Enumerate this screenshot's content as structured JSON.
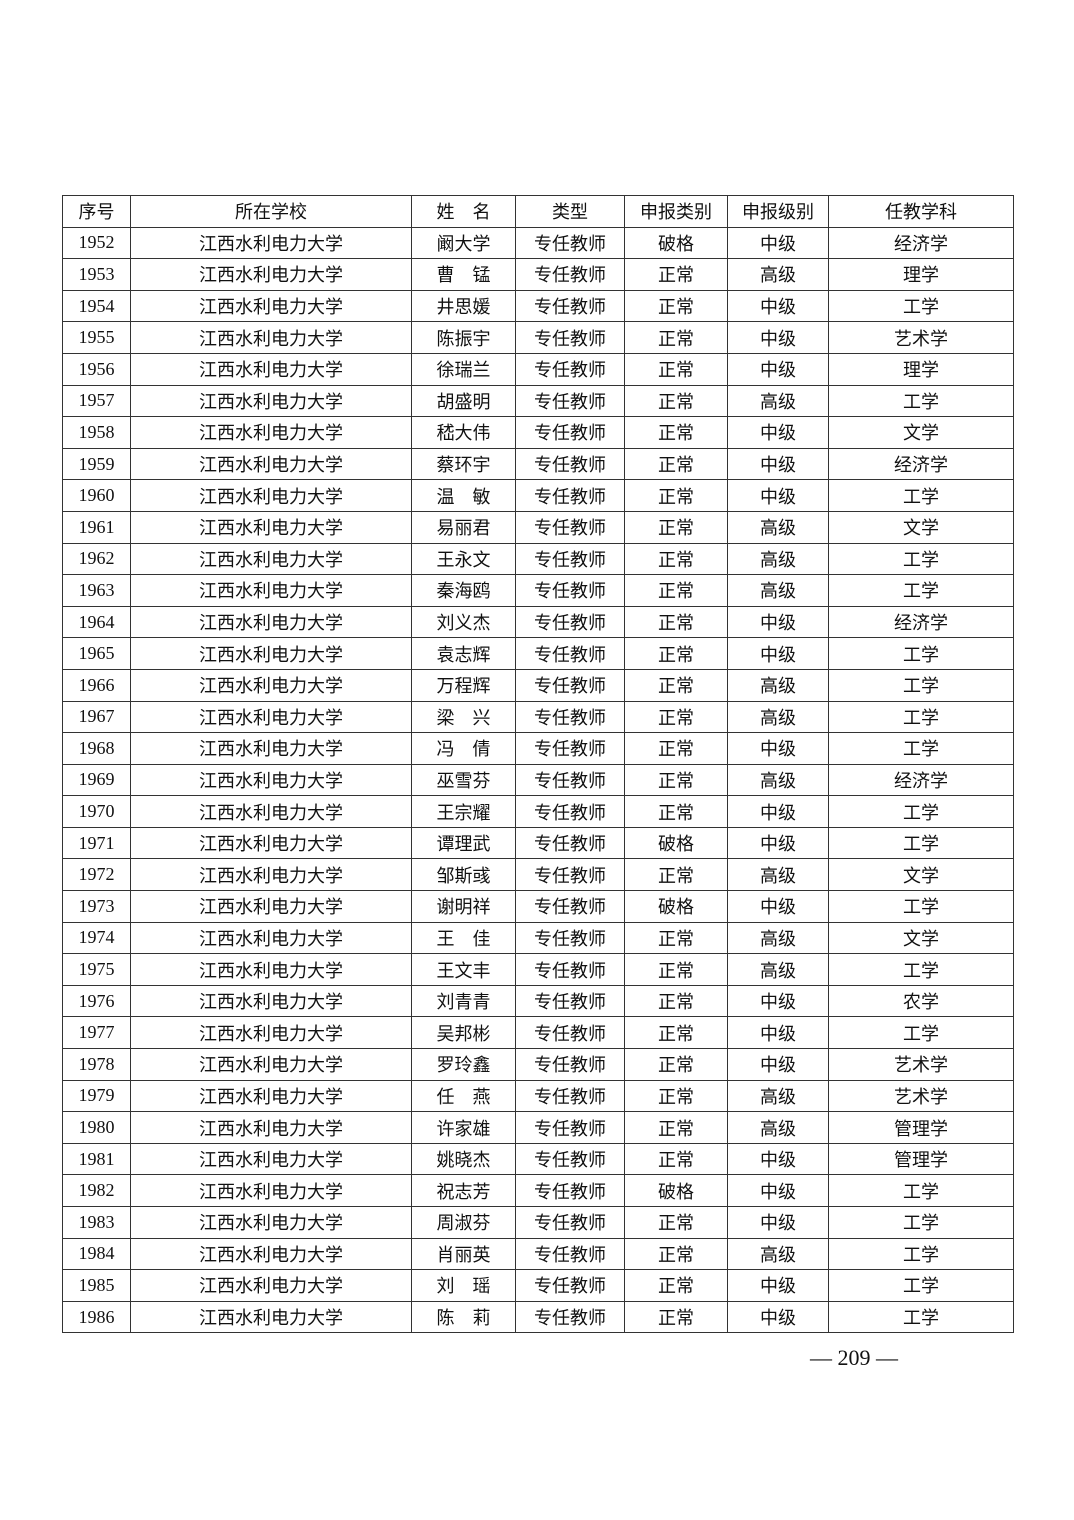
{
  "table": {
    "headers": [
      "序号",
      "所在学校",
      "姓　名",
      "类型",
      "申报类别",
      "申报级别",
      "任教学科"
    ],
    "rows": [
      [
        "1952",
        "江西水利电力大学",
        "阚大学",
        "专任教师",
        "破格",
        "中级",
        "经济学"
      ],
      [
        "1953",
        "江西水利电力大学",
        "曹　锰",
        "专任教师",
        "正常",
        "高级",
        "理学"
      ],
      [
        "1954",
        "江西水利电力大学",
        "井思媛",
        "专任教师",
        "正常",
        "中级",
        "工学"
      ],
      [
        "1955",
        "江西水利电力大学",
        "陈振宇",
        "专任教师",
        "正常",
        "中级",
        "艺术学"
      ],
      [
        "1956",
        "江西水利电力大学",
        "徐瑞兰",
        "专任教师",
        "正常",
        "中级",
        "理学"
      ],
      [
        "1957",
        "江西水利电力大学",
        "胡盛明",
        "专任教师",
        "正常",
        "高级",
        "工学"
      ],
      [
        "1958",
        "江西水利电力大学",
        "嵇大伟",
        "专任教师",
        "正常",
        "中级",
        "文学"
      ],
      [
        "1959",
        "江西水利电力大学",
        "蔡环宇",
        "专任教师",
        "正常",
        "中级",
        "经济学"
      ],
      [
        "1960",
        "江西水利电力大学",
        "温　敏",
        "专任教师",
        "正常",
        "中级",
        "工学"
      ],
      [
        "1961",
        "江西水利电力大学",
        "易丽君",
        "专任教师",
        "正常",
        "高级",
        "文学"
      ],
      [
        "1962",
        "江西水利电力大学",
        "王永文",
        "专任教师",
        "正常",
        "高级",
        "工学"
      ],
      [
        "1963",
        "江西水利电力大学",
        "秦海鸥",
        "专任教师",
        "正常",
        "高级",
        "工学"
      ],
      [
        "1964",
        "江西水利电力大学",
        "刘义杰",
        "专任教师",
        "正常",
        "中级",
        "经济学"
      ],
      [
        "1965",
        "江西水利电力大学",
        "袁志辉",
        "专任教师",
        "正常",
        "中级",
        "工学"
      ],
      [
        "1966",
        "江西水利电力大学",
        "万程辉",
        "专任教师",
        "正常",
        "高级",
        "工学"
      ],
      [
        "1967",
        "江西水利电力大学",
        "梁　兴",
        "专任教师",
        "正常",
        "高级",
        "工学"
      ],
      [
        "1968",
        "江西水利电力大学",
        "冯　倩",
        "专任教师",
        "正常",
        "中级",
        "工学"
      ],
      [
        "1969",
        "江西水利电力大学",
        "巫雪芬",
        "专任教师",
        "正常",
        "高级",
        "经济学"
      ],
      [
        "1970",
        "江西水利电力大学",
        "王宗耀",
        "专任教师",
        "正常",
        "中级",
        "工学"
      ],
      [
        "1971",
        "江西水利电力大学",
        "谭理武",
        "专任教师",
        "破格",
        "中级",
        "工学"
      ],
      [
        "1972",
        "江西水利电力大学",
        "邹斯彧",
        "专任教师",
        "正常",
        "高级",
        "文学"
      ],
      [
        "1973",
        "江西水利电力大学",
        "谢明祥",
        "专任教师",
        "破格",
        "中级",
        "工学"
      ],
      [
        "1974",
        "江西水利电力大学",
        "王　佳",
        "专任教师",
        "正常",
        "高级",
        "文学"
      ],
      [
        "1975",
        "江西水利电力大学",
        "王文丰",
        "专任教师",
        "正常",
        "高级",
        "工学"
      ],
      [
        "1976",
        "江西水利电力大学",
        "刘青青",
        "专任教师",
        "正常",
        "中级",
        "农学"
      ],
      [
        "1977",
        "江西水利电力大学",
        "吴邦彬",
        "专任教师",
        "正常",
        "中级",
        "工学"
      ],
      [
        "1978",
        "江西水利电力大学",
        "罗玲鑫",
        "专任教师",
        "正常",
        "中级",
        "艺术学"
      ],
      [
        "1979",
        "江西水利电力大学",
        "任　燕",
        "专任教师",
        "正常",
        "高级",
        "艺术学"
      ],
      [
        "1980",
        "江西水利电力大学",
        "许家雄",
        "专任教师",
        "正常",
        "高级",
        "管理学"
      ],
      [
        "1981",
        "江西水利电力大学",
        "姚晓杰",
        "专任教师",
        "正常",
        "中级",
        "管理学"
      ],
      [
        "1982",
        "江西水利电力大学",
        "祝志芳",
        "专任教师",
        "破格",
        "中级",
        "工学"
      ],
      [
        "1983",
        "江西水利电力大学",
        "周淑芬",
        "专任教师",
        "正常",
        "中级",
        "工学"
      ],
      [
        "1984",
        "江西水利电力大学",
        "肖丽英",
        "专任教师",
        "正常",
        "高级",
        "工学"
      ],
      [
        "1985",
        "江西水利电力大学",
        "刘　瑶",
        "专任教师",
        "正常",
        "中级",
        "工学"
      ],
      [
        "1986",
        "江西水利电力大学",
        "陈　莉",
        "专任教师",
        "正常",
        "中级",
        "工学"
      ]
    ]
  },
  "footer": {
    "page_number": "— 209 —"
  }
}
